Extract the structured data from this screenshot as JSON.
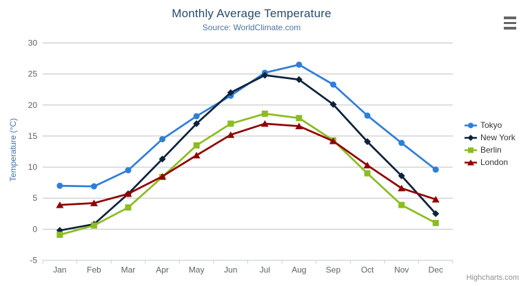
{
  "chart": {
    "menu_icon": "hamburger-menu-icon"
  },
  "credits": "Highcharts.com",
  "chart_data": {
    "type": "line",
    "title": "Monthly Average Temperature",
    "subtitle": "Source: WorldClimate.com",
    "categories": [
      "Jan",
      "Feb",
      "Mar",
      "Apr",
      "May",
      "Jun",
      "Jul",
      "Aug",
      "Sep",
      "Oct",
      "Nov",
      "Dec"
    ],
    "xlabel": "",
    "ylabel": "Temperature (°C)",
    "ylim": [
      -5,
      30
    ],
    "yticks": [
      -5,
      0,
      5,
      10,
      15,
      20,
      25,
      30
    ],
    "grid": true,
    "legend_position": "right-middle",
    "series": [
      {
        "name": "Tokyo",
        "color": "#2f7ed8",
        "marker": "circle",
        "values": [
          7.0,
          6.9,
          9.5,
          14.5,
          18.2,
          21.5,
          25.2,
          26.5,
          23.3,
          18.3,
          13.9,
          9.6
        ]
      },
      {
        "name": "New York",
        "color": "#0d233a",
        "marker": "diamond",
        "values": [
          -0.2,
          0.8,
          5.7,
          11.3,
          17.0,
          22.0,
          24.8,
          24.1,
          20.1,
          14.1,
          8.6,
          2.5
        ]
      },
      {
        "name": "Berlin",
        "color": "#8bbc21",
        "marker": "square",
        "values": [
          -0.9,
          0.6,
          3.5,
          8.4,
          13.5,
          17.0,
          18.6,
          17.9,
          14.3,
          9.0,
          3.9,
          1.0
        ]
      },
      {
        "name": "London",
        "color": "#910000",
        "marker": "triangle",
        "values": [
          3.9,
          4.2,
          5.7,
          8.5,
          11.9,
          15.2,
          17.0,
          16.6,
          14.2,
          10.3,
          6.6,
          4.8
        ]
      }
    ]
  },
  "colors": {
    "title": "#274b6d",
    "subtitle": "#4d759e",
    "axis_title": "#4572a7",
    "axis_label": "#606060",
    "grid_line": "#c0c0c0",
    "axis_line": "#c0d0e0",
    "legend_text": "#333333",
    "credits_text": "#909090",
    "menu_icon": "#666666"
  }
}
